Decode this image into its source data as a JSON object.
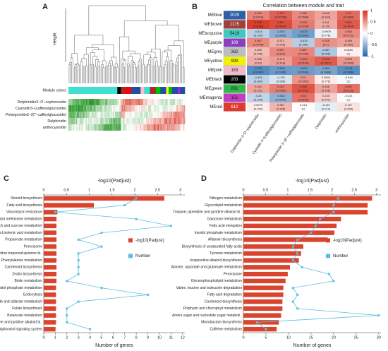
{
  "chart_data": [
    {
      "type": "dendrogram",
      "panel": "A",
      "ylabel": "Height",
      "row_labels": [
        "Module colors",
        "Delphinidin3−O−sophoroside",
        "Cyanidin3−(caffeoylglucoside)",
        "Pelargonidin3−(6''−caffeylglucoside)",
        "Delphinidin",
        "anthocyanidin"
      ]
    },
    {
      "type": "heatmap",
      "panel": "B",
      "title": "Correlation between module and trait",
      "rows": [
        "MEblue",
        "MEbrown",
        "MEturquoise",
        "MEpurple",
        "MEgrey",
        "MEyellow",
        "MEpink",
        "MEblack",
        "MEgreen",
        "MEmagenta",
        "MEred"
      ],
      "row_colors": [
        "#2f5fa8",
        "#a0403a",
        "#3fc9c0",
        "#8a3fc0",
        "#bdbdbd",
        "#f2f200",
        "#f5b8c8",
        "#000000",
        "#2fb84a",
        "#c03fc0",
        "#e03a2f"
      ],
      "sizes": [
        2029,
        1175,
        5419,
        109,
        362,
        999,
        153,
        203,
        891,
        151,
        612
      ],
      "columns": [
        "Delphinidin 3−O−sophoroside",
        "Cyanidin 3−(caffeoylglucoside)",
        "Pelargonidin 3−(6''−caffeylglucoside)",
        "Delphinidin",
        "anthocyanidin"
      ],
      "values": [
        [
          0.594,
          0.763,
          0.568,
          0.448,
          0.72
        ],
        [
          0.932,
          0.857,
          0.634,
          0.411,
          0.801
        ],
        [
          -0.315,
          -0.524,
          -0.629,
          -0.0909,
          0.563
        ],
        [
          0.567,
          0.371,
          -0.329,
          0.526,
          0.459
        ],
        [
          0.329,
          0.567,
          0.587,
          -0.357,
          0.0699
        ],
        [
          0.406,
          0.476,
          0.674,
          0.793,
          0.509
        ],
        [
          -0.753,
          -0.664,
          -0.652,
          -0.601,
          -0.741
        ],
        [
          -0.301,
          -0.175,
          0.51,
          0.0909,
          -0.049
        ],
        [
          0.441,
          0.622,
          0.818,
          0.446,
          0.692
        ],
        [
          -0.28,
          -0.514,
          0.671,
          0.245,
          -0.021
        ],
        [
          0.0979,
          0.357,
          0.014,
          -0.119,
          0.147
        ]
      ],
      "pvalues": [
        [
          0.0016,
          0.00268,
          0.0588,
          0.144,
          0.0083
        ],
        [
          0.0006,
          0.0004,
          0.0264,
          0.19,
          0.0003
        ],
        [
          0.319,
          0.0803,
          0.0284,
          0.778,
          0.0712
        ],
        [
          0.0448,
          0.235,
          0.296,
          0.1,
          0.416
        ],
        [
          0.296,
          0.621,
          0.0448,
          0.255,
          1
        ],
        [
          0.19,
          0.118,
          0.0163,
          0.0021,
          0.0908
        ],
        [
          0.0047,
          0.0185,
          0.0628,
          0.0388,
          0.0058
        ],
        [
          0.342,
          0.586,
          0.0903,
          0.778,
          1
        ],
        [
          0.151,
          0.0306,
          0.0011,
          0.146,
          0.0126
        ],
        [
          0.378,
          0.0873,
          0.0169,
          0.443,
          1
        ],
        [
          0.762,
          0.255,
          1,
          0.713,
          0.648
        ]
      ],
      "pvalue_labels": [
        [
          "(0.0016)",
          "(0.00268)",
          "(0.0588)",
          "(0.144)",
          "(0.0083)"
        ],
        [
          "(0.0006)",
          "(0.0004)",
          "(0.0264)",
          "(0.19)",
          "(0.0003)"
        ],
        [
          "(0.319)",
          "(0.0803)",
          "(0.0284)",
          "(0.778)",
          "(0.0712)"
        ],
        [
          "(0.0448)",
          "(0.235)",
          "(0.296)",
          "(0.1)",
          "(0.416)"
        ],
        [
          "(0.296)",
          "(0.621)",
          "(0.0448)",
          "(0.255)",
          "(1)"
        ],
        [
          "(0.19)",
          "(0.118)",
          "(0.0163)",
          "(0.0021)",
          "(0.0908)"
        ],
        [
          "(0.0047)",
          "(0.0185)",
          "(0.0628)",
          "(0.0388)",
          "(0.0058)"
        ],
        [
          "(0.342)",
          "(0.586)",
          "(0.0903)",
          "(0.778)",
          "(1)"
        ],
        [
          "(0.151)",
          "(0.0306)",
          "(0.0011)",
          "(0.146)",
          "(0.0126)"
        ],
        [
          "(0.378)",
          "(0.0873)",
          "(0.0169)",
          "(0.443)",
          "(1)"
        ],
        [
          "(0.762)",
          "(0.255)",
          "(1)",
          "(0.713)",
          "(0.648)"
        ]
      ],
      "colormap": [
        "#2166ac",
        "#ffffff",
        "#d7301f"
      ],
      "clim": [
        -1,
        1
      ],
      "cticks": [
        1,
        0.5,
        0,
        -0.5,
        -1
      ]
    },
    {
      "type": "bar_line",
      "panel": "C",
      "xlabel_top": "-log10(Padjust)",
      "xlabel": "Number of genes",
      "categories": [
        "Steroid biosynthesis",
        "Fatty acid biosynthesis",
        "Vancomycin resistance",
        "Cysteine and methionine metabolism",
        "Starch and sucrose metabolism",
        "alpha-Linolenic acid metabolism",
        "Propanoate metabolism",
        "Peroxisome",
        "Ubiquinone and other terpenoid-quinone bi..",
        "Phenylalanine metabolism",
        "Carotenoid biosynthesis",
        "Zeatin biosynthesis",
        "Biotin metabolism",
        "Inositol phosphate metabolism",
        "Endocytosis",
        "Ascorbate and aldarate metabolism",
        "Folate biosynthesis",
        "Butanoate metabolism",
        "Tropane, piperidine and pyridine alkaloid bi..",
        "Phosphatidylinositol signaling system"
      ],
      "series": [
        {
          "name": "-log10(Padjust)",
          "color": "#d9442f",
          "values": [
            2.65,
            1.1,
            0.3,
            0.28,
            0.28,
            0.28,
            0.28,
            0.28,
            0.28,
            0.28,
            0.28,
            0.28,
            0.28,
            0.27,
            0.27,
            0.27,
            0.27,
            0.27,
            0.27,
            0.26
          ]
        },
        {
          "name": "Number",
          "color": "#5bc0de",
          "axis": "x2",
          "values": [
            8,
            7,
            1,
            8,
            11,
            5,
            3,
            5,
            3,
            3,
            3,
            3,
            2,
            5,
            9,
            3,
            2,
            2,
            2,
            4
          ]
        }
      ],
      "xlim": [
        0,
        3.1
      ],
      "xticks": [
        0,
        0.5,
        1,
        1.5,
        2,
        2.5,
        3
      ],
      "x2lim": [
        0,
        12.2
      ],
      "x2ticks": [
        0,
        1,
        2,
        3,
        4,
        5,
        6,
        7,
        8,
        9,
        10,
        11,
        12
      ]
    },
    {
      "type": "bar_line",
      "panel": "D",
      "xlabel_top": "-log10(Padjust)",
      "xlabel": "Number of genes",
      "categories": [
        "Nitrogen metabolism",
        "Glycerolipid metabolism",
        "Tropane, piperidine and pyridine alkaloid bi..",
        "Galactose metabolism",
        "Fatty acid elongation",
        "Inositol phosphate metabolism",
        "Aflatoxin biosynthesis",
        "Biosynthesis of unsaturated fatty acids",
        "Tyrosine metabolism",
        "Isoquinoline alkaloid biosynthesis",
        "Alanine, aspartate and glutamate metabolism",
        "Peroxisome",
        "Glycerophospholipid metabolism",
        "Valine, leucine and isoleucine degradation",
        "Fatty acid degradation",
        "Carotenoid biosynthesis",
        "Porphyrin and chlorophyll metabolism",
        "Amino sugar and nucleotide sugar metaboli..",
        "Monobactam biosynthesis",
        "Caffeine metabolism"
      ],
      "series": [
        {
          "name": "-log10(Padjust)",
          "color": "#d9442f",
          "values": [
            2.9,
            2.8,
            2.8,
            2.2,
            2.1,
            2.05,
            1.9,
            1.35,
            1.3,
            1.25,
            1.05,
            1.0,
            0.95,
            0.9,
            0.9,
            0.88,
            0.88,
            0.85,
            0.8,
            0.75
          ]
        },
        {
          "name": "Number",
          "color": "#5bc0de",
          "axis": "x2",
          "values": [
            21,
            20,
            20,
            17,
            16,
            15,
            12,
            11,
            12,
            11,
            13,
            19,
            20,
            11,
            12,
            11,
            12,
            30,
            3,
            5
          ]
        }
      ],
      "xlim": [
        0,
        3.1
      ],
      "xticks": [
        0,
        0.5,
        1,
        1.5,
        2,
        2.5,
        3
      ],
      "x2lim": [
        0,
        30.5
      ],
      "x2ticks": [
        0,
        5,
        10,
        15,
        20,
        25,
        30
      ]
    }
  ]
}
